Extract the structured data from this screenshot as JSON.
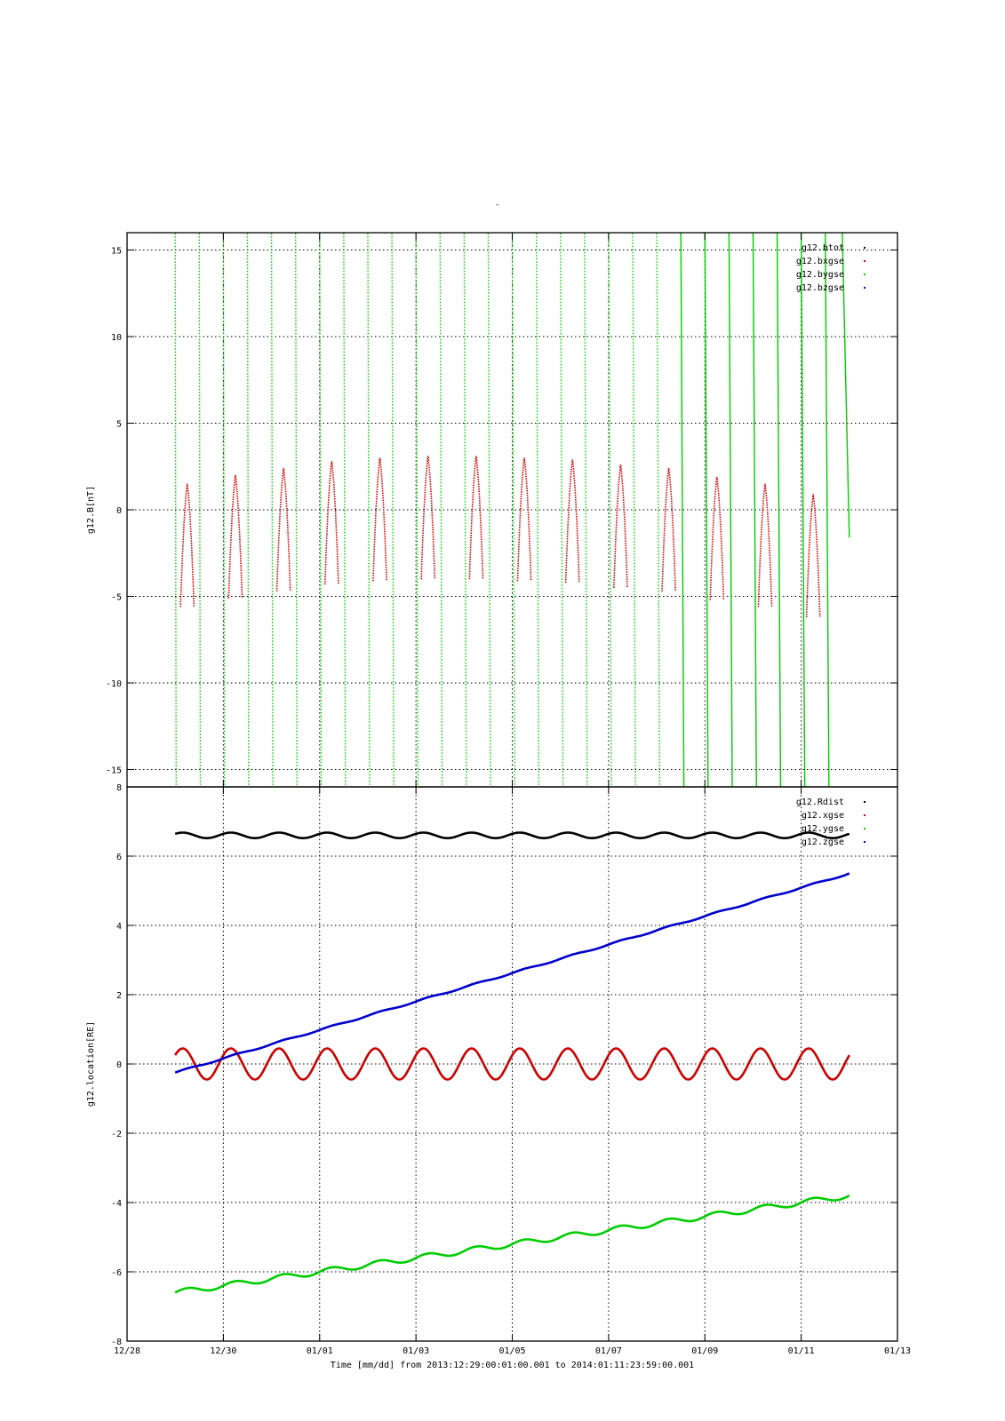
{
  "page_title": "-",
  "xlabel": "Time [mm/dd]  from 2013:12:29:00:01:00.001  to  2014:01:11:23:59:00.001",
  "x_tick_labels": [
    "12/28",
    "12/30",
    "01/01",
    "01/03",
    "01/05",
    "01/07",
    "01/09",
    "01/11",
    "01/13"
  ],
  "chart_data": [
    {
      "type": "line",
      "ylabel": "g12.B[nT]",
      "ylim": [
        -16,
        16
      ],
      "yticks": [
        -15,
        -10,
        -5,
        0,
        5,
        10,
        15
      ],
      "ytick_labels": [
        "-15",
        "-10",
        "-5",
        "0",
        "5",
        "10",
        "15"
      ],
      "xlim_days": [
        0,
        16
      ],
      "grid": true,
      "legend_position": "top-right",
      "series": [
        {
          "name": "g12.btot",
          "color": "#000000",
          "values": []
        },
        {
          "name": "g12.bxgse",
          "color": "#cc0000",
          "shape": "peaks",
          "peak_days": [
            1.25,
            2.25,
            3.25,
            4.25,
            5.25,
            6.25,
            7.25,
            8.25,
            9.25,
            10.25,
            11.25,
            12.25,
            13.25,
            14.25
          ],
          "peak_values": [
            1.5,
            2.0,
            2.4,
            2.8,
            3.0,
            3.1,
            3.1,
            3.0,
            2.9,
            2.6,
            2.4,
            1.9,
            1.5,
            0.9
          ]
        },
        {
          "name": "g12.bygse",
          "color": "#00cc00",
          "shape": "sawtooth",
          "start_day": 1.0,
          "end_day": 15.0,
          "end_value": -1.6
        },
        {
          "name": "g12.bzgse",
          "color": "#0000cc",
          "values": []
        }
      ]
    },
    {
      "type": "line",
      "ylabel": "g12.location[RE]",
      "ylim": [
        -8,
        8
      ],
      "yticks": [
        -8,
        -6,
        -4,
        -2,
        0,
        2,
        4,
        6,
        8
      ],
      "ytick_labels": [
        "-8",
        "-6",
        "-4",
        "-2",
        "0",
        "2",
        "4",
        "6",
        "8"
      ],
      "xlim_days": [
        0,
        16
      ],
      "grid": true,
      "legend_position": "top-right",
      "series": [
        {
          "name": "g12.Rdist",
          "color": "#000000",
          "mean": 6.6,
          "amplitude": 0.08,
          "period_days": 1
        },
        {
          "name": "g12.xgse",
          "color": "#cc0000",
          "mean": 0.0,
          "amplitude": 0.45,
          "period_days": 1
        },
        {
          "name": "g12.ygse",
          "color": "#00cc00",
          "start": -6.6,
          "end": -3.8,
          "amplitude": 0.08,
          "period_days": 1
        },
        {
          "name": "g12.zgse",
          "color": "#0000cc",
          "start": -0.25,
          "end": 5.5,
          "amplitude": 0.02,
          "period_days": 1
        }
      ]
    }
  ]
}
